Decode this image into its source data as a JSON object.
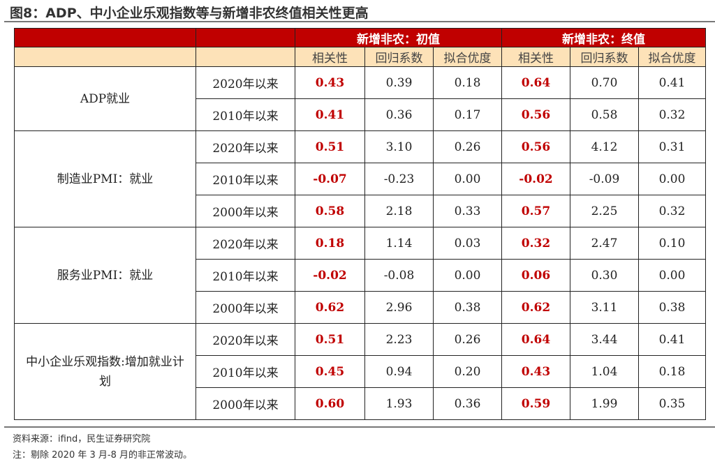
{
  "title": "图8：ADP、中小企业乐观指数等与新增非农终值相关性更高",
  "header": {
    "group1": "新增非农：初值",
    "group2": "新增非农：终值",
    "sub": [
      "相关性",
      "回归系数",
      "拟合优度",
      "相关性",
      "回归系数",
      "拟合优度"
    ]
  },
  "groups": [
    {
      "name": "ADP就业",
      "rows": [
        [
          "2020年以来",
          "0.43",
          "0.39",
          "0.18",
          "0.64",
          "0.70",
          "0.41"
        ],
        [
          "2010年以来",
          "0.41",
          "0.36",
          "0.17",
          "0.56",
          "0.58",
          "0.32"
        ]
      ]
    },
    {
      "name": "制造业PMI：就业",
      "rows": [
        [
          "2020年以来",
          "0.51",
          "3.10",
          "0.26",
          "0.56",
          "4.12",
          "0.31"
        ],
        [
          "2010年以来",
          "-0.07",
          "-0.23",
          "0.00",
          "-0.02",
          "-0.09",
          "0.00"
        ],
        [
          "2000年以来",
          "0.58",
          "2.18",
          "0.33",
          "0.57",
          "2.25",
          "0.32"
        ]
      ]
    },
    {
      "name": "服务业PMI：就业",
      "rows": [
        [
          "2020年以来",
          "0.18",
          "1.14",
          "0.03",
          "0.32",
          "2.47",
          "0.10"
        ],
        [
          "2010年以来",
          "-0.02",
          "-0.08",
          "0.00",
          "0.06",
          "0.30",
          "0.00"
        ],
        [
          "2000年以来",
          "0.62",
          "2.96",
          "0.38",
          "0.62",
          "3.11",
          "0.38"
        ]
      ]
    },
    {
      "name": "中小企业乐观指数:增加就业计划",
      "rows": [
        [
          "2020年以来",
          "0.51",
          "2.23",
          "0.26",
          "0.64",
          "3.44",
          "0.41"
        ],
        [
          "2010年以来",
          "0.45",
          "0.94",
          "0.20",
          "0.43",
          "1.04",
          "0.18"
        ],
        [
          "2000年以来",
          "0.60",
          "1.93",
          "0.36",
          "0.59",
          "1.99",
          "0.35"
        ]
      ]
    }
  ],
  "source": "资料来源：ifind，民生证券研究院",
  "note": "注：剔除 2020 年 3 月-8 月的非正常波动。"
}
